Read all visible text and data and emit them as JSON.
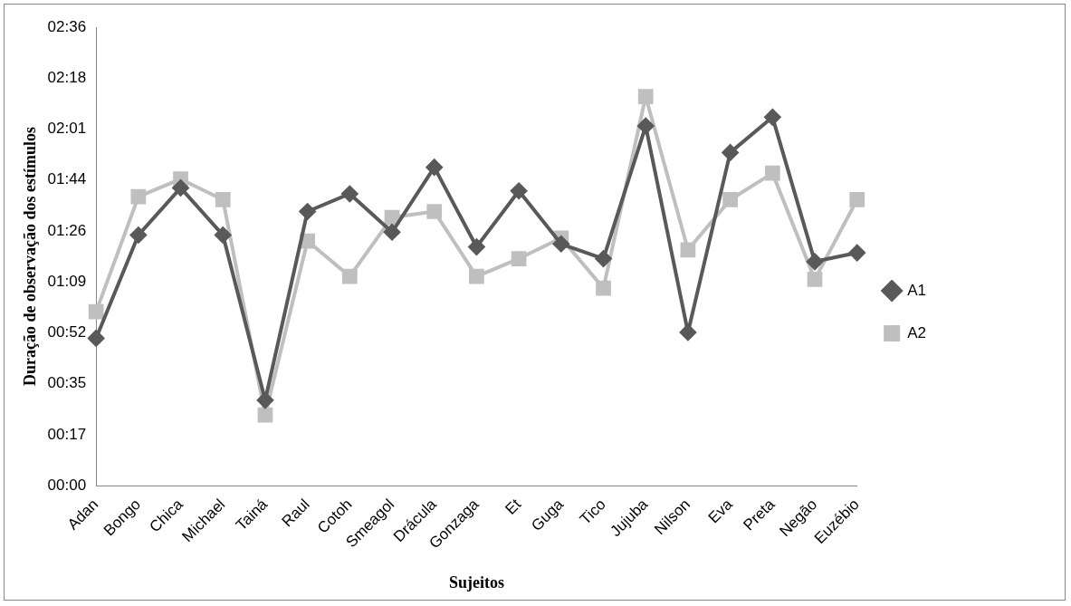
{
  "chart_data": {
    "type": "line",
    "xlabel": "Sujeitos",
    "ylabel": "Duração de observação dos estímulos",
    "categories": [
      "Adan",
      "Bongo",
      "Chica",
      "Michael",
      "Tainá",
      "Raul",
      "Cotoh",
      "Smeagol",
      "Drácula",
      "Gonzaga",
      "Et",
      "Guga",
      "Tico",
      "Jujuba",
      "Nilson",
      "Eva",
      "Preta",
      "Negão",
      "Euzébio"
    ],
    "series": [
      {
        "name": "A1",
        "color": "#595959",
        "marker": "diamond",
        "values": [
          50,
          85,
          101,
          85,
          29,
          93,
          99,
          86,
          108,
          81,
          100,
          82,
          77,
          122,
          52,
          113,
          125,
          76,
          79
        ]
      },
      {
        "name": "A2",
        "color": "#bfbfbf",
        "marker": "square",
        "values": [
          59,
          98,
          104,
          97,
          24,
          83,
          71,
          91,
          93,
          71,
          77,
          84,
          67,
          132,
          80,
          97,
          106,
          70,
          97
        ]
      }
    ],
    "ylim": [
      0,
      155.52
    ],
    "yticks": [
      {
        "value": 0,
        "label": "00:00"
      },
      {
        "value": 17.28,
        "label": "00:17"
      },
      {
        "value": 34.56,
        "label": "00:35"
      },
      {
        "value": 51.84,
        "label": "00:52"
      },
      {
        "value": 69.12,
        "label": "01:09"
      },
      {
        "value": 86.4,
        "label": "01:26"
      },
      {
        "value": 103.68,
        "label": "01:44"
      },
      {
        "value": 120.96,
        "label": "02:01"
      },
      {
        "value": 138.24,
        "label": "02:18"
      },
      {
        "value": 155.52,
        "label": "02:36"
      }
    ],
    "grid": false,
    "legend": "right",
    "line_style": "solid"
  }
}
